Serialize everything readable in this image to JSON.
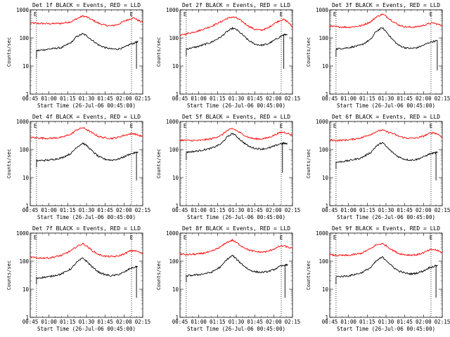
{
  "colors": {
    "events": "#000000",
    "lld": "#ff0000",
    "background": "#ffffff"
  },
  "chart_data": [
    {
      "type": "line",
      "title": "Det 1f BLACK = Events, RED = LLD",
      "xlabel": "Start Time (26-Jul-06 00:45:00)",
      "ylabel": "Counts/sec",
      "y_scale": "log",
      "ylim": [
        1,
        1000
      ],
      "x_ticks": [
        "00:45",
        "01:00",
        "01:15",
        "01:30",
        "01:45",
        "02:00",
        "02:15"
      ],
      "y_ticks": [
        "1",
        "10",
        "100",
        "1000"
      ],
      "markers": [
        "E",
        "E"
      ],
      "marker_times": [
        "00:49",
        "02:06"
      ],
      "dotted_lines": [
        "00:50",
        "02:06"
      ],
      "x": [
        "00:45",
        "00:50",
        "01:00",
        "01:10",
        "01:18",
        "01:22",
        "01:27",
        "01:30",
        "01:35",
        "01:40",
        "01:45",
        "01:50",
        "01:55",
        "02:00",
        "02:05",
        "02:08",
        "02:11",
        "02:15"
      ],
      "series": [
        {
          "color": "#ff0000",
          "values": [
            340,
            330,
            320,
            330,
            380,
            480,
            600,
            560,
            430,
            330,
            280,
            270,
            300,
            390,
            480,
            520,
            430,
            350
          ]
        },
        {
          "color": "#000000",
          "values": [
            null,
            35,
            40,
            45,
            70,
            110,
            140,
            120,
            80,
            55,
            45,
            40,
            40,
            45,
            60,
            65,
            75,
            null
          ],
          "end_drop": {
            "time": "02:10",
            "value": 8
          }
        }
      ]
    },
    {
      "type": "line",
      "title": "Det 2f BLACK = Events, RED = LLD",
      "xlabel": "Start Time (26-Jul-06 00:45:00)",
      "ylabel": "Counts/sec",
      "y_scale": "log",
      "ylim": [
        1,
        1000
      ],
      "x_ticks": [
        "00:45",
        "01:00",
        "01:15",
        "01:30",
        "01:45",
        "02:00",
        "02:15"
      ],
      "y_ticks": [
        "1",
        "10",
        "100",
        "1000"
      ],
      "markers": [
        "E",
        "E"
      ],
      "marker_times": [
        "00:49",
        "02:06"
      ],
      "dotted_lines": [
        "00:50",
        "02:06"
      ],
      "x": [
        "00:45",
        "00:50",
        "01:00",
        "01:10",
        "01:18",
        "01:22",
        "01:27",
        "01:30",
        "01:35",
        "01:40",
        "01:45",
        "01:50",
        "01:55",
        "02:00",
        "02:05",
        "02:08",
        "02:11",
        "02:15"
      ],
      "series": [
        {
          "color": "#ff0000",
          "values": [
            120,
            140,
            180,
            260,
            380,
            480,
            560,
            520,
            380,
            260,
            200,
            190,
            220,
            320,
            420,
            450,
            380,
            240
          ]
        },
        {
          "color": "#000000",
          "values": [
            null,
            40,
            50,
            70,
            110,
            160,
            220,
            200,
            130,
            80,
            60,
            55,
            60,
            80,
            110,
            130,
            130,
            null
          ],
          "end_drop": {
            "time": "02:08",
            "value": 8
          }
        }
      ]
    },
    {
      "type": "line",
      "title": "Det 3f BLACK = Events, RED = LLD",
      "xlabel": "Start Time (26-Jul-06 00:45:00)",
      "ylabel": "Counts/sec",
      "y_scale": "log",
      "ylim": [
        1,
        1000
      ],
      "x_ticks": [
        "00:45",
        "01:00",
        "01:15",
        "01:30",
        "01:45",
        "02:00",
        "02:15"
      ],
      "y_ticks": [
        "1",
        "10",
        "100",
        "1000"
      ],
      "markers": [
        "E",
        "E"
      ],
      "marker_times": [
        "00:49",
        "02:06"
      ],
      "dotted_lines": [
        "00:50",
        "02:06"
      ],
      "x": [
        "00:45",
        "00:50",
        "01:00",
        "01:10",
        "01:18",
        "01:22",
        "01:27",
        "01:30",
        "01:35",
        "01:40",
        "01:45",
        "01:50",
        "01:55",
        "02:00",
        "02:05",
        "02:08",
        "02:11",
        "02:15"
      ],
      "series": [
        {
          "color": "#ff0000",
          "values": [
            260,
            250,
            240,
            270,
            380,
            550,
            700,
            600,
            400,
            290,
            250,
            240,
            250,
            280,
            330,
            340,
            310,
            270
          ]
        },
        {
          "color": "#000000",
          "values": [
            null,
            40,
            45,
            55,
            90,
            170,
            230,
            170,
            90,
            55,
            45,
            42,
            45,
            55,
            70,
            75,
            80,
            null
          ],
          "end_drop": {
            "time": "02:11",
            "value": 7
          }
        }
      ]
    },
    {
      "type": "line",
      "title": "Det 4f BLACK = Events, RED = LLD",
      "xlabel": "Start Time (26-Jul-06 00:45:00)",
      "ylabel": "Counts/sec",
      "y_scale": "log",
      "ylim": [
        1,
        1000
      ],
      "x_ticks": [
        "00:45",
        "01:00",
        "01:15",
        "01:30",
        "01:45",
        "02:00",
        "02:15"
      ],
      "y_ticks": [
        "1",
        "10",
        "100",
        "1000"
      ],
      "markers": [
        "E",
        "E"
      ],
      "marker_times": [
        "00:49",
        "02:06"
      ],
      "dotted_lines": [
        "00:50",
        "02:06"
      ],
      "x": [
        "00:45",
        "00:50",
        "01:00",
        "01:10",
        "01:18",
        "01:22",
        "01:27",
        "01:30",
        "01:35",
        "01:40",
        "01:45",
        "01:50",
        "01:55",
        "02:00",
        "02:05",
        "02:08",
        "02:11",
        "02:15"
      ],
      "series": [
        {
          "color": "#ff0000",
          "values": [
            270,
            260,
            250,
            270,
            360,
            500,
            600,
            520,
            380,
            290,
            260,
            250,
            270,
            320,
            360,
            370,
            330,
            290
          ]
        },
        {
          "color": "#000000",
          "values": [
            null,
            40,
            42,
            50,
            75,
            120,
            170,
            140,
            85,
            55,
            45,
            42,
            45,
            55,
            70,
            75,
            80,
            null
          ],
          "end_drop": {
            "time": "02:10",
            "value": 8
          }
        }
      ]
    },
    {
      "type": "line",
      "title": "Det 5f BLACK = Events, RED = LLD",
      "xlabel": "Start Time (26-Jul-06 00:45:00)",
      "ylabel": "Counts/sec",
      "y_scale": "log",
      "ylim": [
        1,
        1000
      ],
      "x_ticks": [
        "00:45",
        "01:00",
        "01:15",
        "01:30",
        "01:45",
        "02:00",
        "02:15"
      ],
      "y_ticks": [
        "1",
        "10",
        "100",
        "1000"
      ],
      "markers": [
        "E",
        "E"
      ],
      "marker_times": [
        "00:49",
        "02:06"
      ],
      "dotted_lines": [
        "00:50",
        "02:06"
      ],
      "x": [
        "00:45",
        "00:50",
        "01:00",
        "01:10",
        "01:18",
        "01:22",
        "01:27",
        "01:30",
        "01:35",
        "01:40",
        "01:45",
        "01:50",
        "01:55",
        "02:00",
        "02:05",
        "02:08",
        "02:11",
        "02:15"
      ],
      "series": [
        {
          "color": "#ff0000",
          "values": [
            220,
            210,
            210,
            240,
            320,
            450,
            560,
            480,
            350,
            270,
            240,
            240,
            260,
            320,
            400,
            420,
            380,
            320
          ]
        },
        {
          "color": "#000000",
          "values": [
            null,
            80,
            90,
            110,
            160,
            260,
            380,
            300,
            190,
            130,
            110,
            105,
            110,
            130,
            160,
            170,
            160,
            null
          ],
          "end_drop": {
            "time": "02:07",
            "value": 15
          }
        }
      ]
    },
    {
      "type": "line",
      "title": "Det 6f BLACK = Events, RED = LLD",
      "xlabel": "Start Time (26-Jul-06 00:45:00)",
      "ylabel": "Counts/sec",
      "y_scale": "log",
      "ylim": [
        1,
        1000
      ],
      "x_ticks": [
        "00:45",
        "01:00",
        "01:15",
        "01:30",
        "01:45",
        "02:00",
        "02:15"
      ],
      "y_ticks": [
        "1",
        "10",
        "100",
        "1000"
      ],
      "markers": [
        "E",
        "E"
      ],
      "marker_times": [
        "00:49",
        "02:06"
      ],
      "dotted_lines": [
        "00:50",
        "02:06"
      ],
      "x": [
        "00:45",
        "00:50",
        "01:00",
        "01:10",
        "01:18",
        "01:22",
        "01:27",
        "01:30",
        "01:35",
        "01:40",
        "01:45",
        "01:50",
        "01:55",
        "02:00",
        "02:05",
        "02:08",
        "02:11",
        "02:15"
      ],
      "series": [
        {
          "color": "#ff0000",
          "values": [
            220,
            210,
            220,
            260,
            350,
            430,
            500,
            440,
            380,
            300,
            260,
            250,
            260,
            300,
            380,
            400,
            360,
            280
          ]
        },
        {
          "color": "#000000",
          "values": [
            null,
            35,
            40,
            50,
            80,
            130,
            180,
            130,
            80,
            55,
            45,
            42,
            45,
            55,
            70,
            75,
            80,
            null
          ],
          "end_drop": {
            "time": "02:10",
            "value": 8
          }
        }
      ]
    },
    {
      "type": "line",
      "title": "Det 7f BLACK = Events, RED = LLD",
      "xlabel": "Start Time (26-Jul-06 00:45:00)",
      "ylabel": "Counts/sec",
      "y_scale": "log",
      "ylim": [
        1,
        1000
      ],
      "x_ticks": [
        "00:45",
        "01:00",
        "01:15",
        "01:30",
        "01:45",
        "02:00",
        "02:15"
      ],
      "y_ticks": [
        "1",
        "10",
        "100",
        "1000"
      ],
      "markers": [
        "E",
        "E"
      ],
      "marker_times": [
        "00:49",
        "02:06"
      ],
      "dotted_lines": [
        "00:50",
        "02:06"
      ],
      "x": [
        "00:45",
        "00:50",
        "01:00",
        "01:10",
        "01:18",
        "01:22",
        "01:27",
        "01:30",
        "01:35",
        "01:40",
        "01:45",
        "01:50",
        "01:55",
        "02:00",
        "02:05",
        "02:08",
        "02:11",
        "02:15"
      ],
      "series": [
        {
          "color": "#ff0000",
          "values": [
            140,
            130,
            130,
            160,
            240,
            330,
            420,
            350,
            230,
            170,
            150,
            145,
            150,
            180,
            230,
            240,
            220,
            180
          ]
        },
        {
          "color": "#000000",
          "values": [
            null,
            25,
            28,
            35,
            55,
            90,
            130,
            100,
            60,
            40,
            33,
            30,
            33,
            40,
            55,
            60,
            65,
            null
          ],
          "end_drop": {
            "time": "02:10",
            "value": 5
          }
        }
      ]
    },
    {
      "type": "line",
      "title": "Det 8f BLACK = Events, RED = LLD",
      "xlabel": "Start Time (26-Jul-06 00:45:00)",
      "ylabel": "Counts/sec",
      "y_scale": "log",
      "ylim": [
        1,
        1000
      ],
      "x_ticks": [
        "00:45",
        "01:00",
        "01:15",
        "01:30",
        "01:45",
        "02:00",
        "02:15"
      ],
      "y_ticks": [
        "1",
        "10",
        "100",
        "1000"
      ],
      "markers": [
        "E",
        "E"
      ],
      "marker_times": [
        "00:49",
        "02:06"
      ],
      "dotted_lines": [
        "00:50",
        "02:06"
      ],
      "x": [
        "00:45",
        "00:50",
        "01:00",
        "01:10",
        "01:18",
        "01:22",
        "01:27",
        "01:30",
        "01:35",
        "01:40",
        "01:45",
        "01:50",
        "01:55",
        "02:00",
        "02:05",
        "02:08",
        "02:11",
        "02:15"
      ],
      "series": [
        {
          "color": "#ff0000",
          "values": [
            180,
            170,
            180,
            220,
            330,
            460,
            560,
            460,
            330,
            250,
            220,
            210,
            220,
            270,
            340,
            350,
            320,
            280
          ]
        },
        {
          "color": "#000000",
          "values": [
            null,
            30,
            33,
            40,
            65,
            110,
            160,
            120,
            75,
            50,
            42,
            40,
            42,
            50,
            65,
            70,
            75,
            null
          ],
          "end_drop": {
            "time": "02:09",
            "value": 5
          }
        }
      ]
    },
    {
      "type": "line",
      "title": "Det 9f BLACK = Events, RED = LLD",
      "xlabel": "Start Time (26-Jul-06 00:45:00)",
      "ylabel": "Counts/sec",
      "y_scale": "log",
      "ylim": [
        1,
        1000
      ],
      "x_ticks": [
        "00:45",
        "01:00",
        "01:15",
        "01:30",
        "01:45",
        "02:00",
        "02:15"
      ],
      "y_ticks": [
        "1",
        "10",
        "100",
        "1000"
      ],
      "markers": [
        "E",
        "E"
      ],
      "marker_times": [
        "00:49",
        "02:06"
      ],
      "dotted_lines": [
        "00:50",
        "02:06"
      ],
      "x": [
        "00:45",
        "00:50",
        "01:00",
        "01:10",
        "01:18",
        "01:22",
        "01:27",
        "01:30",
        "01:35",
        "01:40",
        "01:45",
        "01:50",
        "01:55",
        "02:00",
        "02:05",
        "02:08",
        "02:11",
        "02:15"
      ],
      "series": [
        {
          "color": "#ff0000",
          "values": [
            170,
            160,
            160,
            190,
            280,
            380,
            420,
            360,
            250,
            190,
            170,
            165,
            170,
            200,
            250,
            260,
            240,
            200
          ]
        },
        {
          "color": "#000000",
          "values": [
            null,
            28,
            30,
            38,
            60,
            100,
            140,
            110,
            65,
            45,
            38,
            35,
            38,
            45,
            60,
            65,
            70,
            null
          ],
          "end_drop": {
            "time": "02:10",
            "value": 5
          }
        }
      ]
    }
  ]
}
